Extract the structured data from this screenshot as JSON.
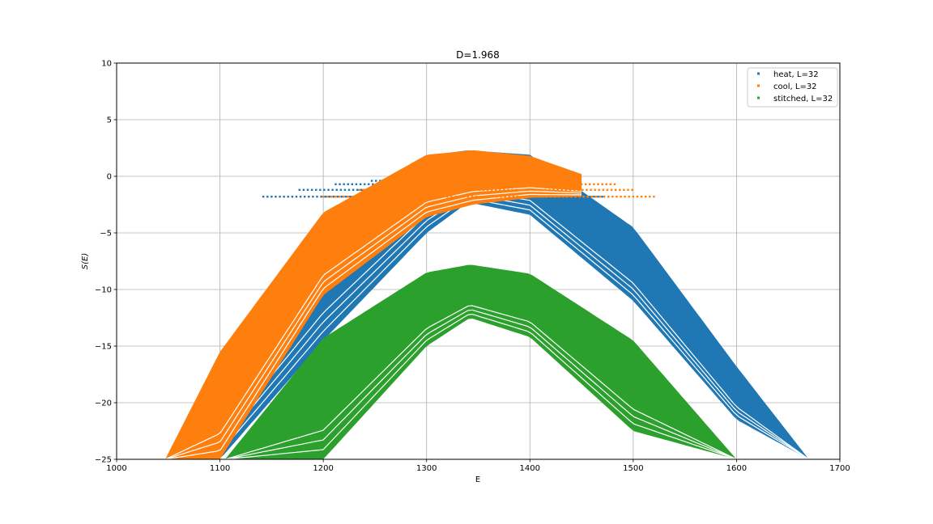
{
  "chart_data": {
    "type": "scatter",
    "title": "D=1.968",
    "xlabel": "E",
    "ylabel": "S(E)",
    "xlim": [
      1000,
      1700
    ],
    "ylim": [
      -25,
      10
    ],
    "xticks": [
      1000,
      1100,
      1200,
      1300,
      1400,
      1500,
      1600,
      1700
    ],
    "yticks": [
      -25,
      -20,
      -15,
      -10,
      -5,
      0,
      5,
      10
    ],
    "grid": true,
    "legend_position": "top-right",
    "series": [
      {
        "name": "heat, L=32",
        "color": "#1f77b4",
        "shape": "parabolic band",
        "peak": {
          "x": 1340,
          "y": 2.3
        },
        "bands": [
          {
            "x": [
              1047,
              1100,
              1200,
              1300,
              1340,
              1400,
              1500,
              1600,
              1670
            ],
            "y_top": [
              -25,
              -17.5,
              -4.3,
              1.8,
              2.3,
              1.9,
              -4.5,
              -16.8,
              -25
            ],
            "y_bottom": [
              -25,
              -25,
              -14.5,
              -5.0,
              -2.3,
              -3.4,
              -11.0,
              -21.5,
              -25
            ]
          }
        ],
        "flat_branch": {
          "y_levels": [
            -1.8,
            -1.2,
            -0.7,
            -0.4
          ],
          "x_min": 1142,
          "x_max": 1470
        }
      },
      {
        "name": "cool, L=32",
        "color": "#ff7f0e",
        "shape": "parabolic band",
        "peak": {
          "x": 1345,
          "y": 2.3
        },
        "bands": [
          {
            "x": [
              1047,
              1100,
              1200,
              1300,
              1345,
              1400,
              1450
            ],
            "y_top": [
              -25,
              -15.5,
              -3.2,
              1.9,
              2.3,
              1.8,
              0.2
            ],
            "y_bottom": [
              -25,
              -25,
              -10.5,
              -3.6,
              -2.5,
              -1.9,
              -1.8
            ]
          }
        ],
        "flat_branch": {
          "y_levels": [
            -1.8,
            -1.2,
            -0.7
          ],
          "x_min": 1200,
          "x_max": 1522
        }
      },
      {
        "name": "stitched, L=32",
        "color": "#2ca02c",
        "shape": "parabolic band",
        "peak": {
          "x": 1342,
          "y": -7.8
        },
        "bands": [
          {
            "x": [
              1105,
              1200,
              1300,
              1342,
              1400,
              1500,
              1600
            ],
            "y_top": [
              -25,
              -14.3,
              -8.5,
              -7.8,
              -8.6,
              -14.5,
              -25
            ],
            "y_bottom": [
              -25,
              -25,
              -15.0,
              -12.5,
              -14.2,
              -22.5,
              -25
            ]
          }
        ]
      }
    ]
  }
}
